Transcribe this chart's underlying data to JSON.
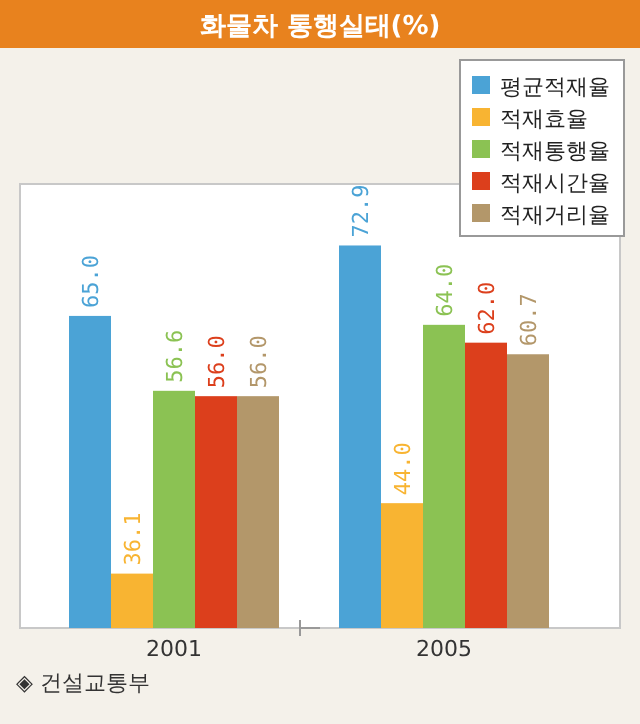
{
  "chart_data": {
    "type": "bar",
    "title": "화물차 통행실태(%)",
    "categories": [
      "2001",
      "2005"
    ],
    "series": [
      {
        "name": "평균적재율",
        "color": "#4ba3d6",
        "values": [
          65.0,
          72.9
        ],
        "value_labels": [
          "65.0",
          "72.9"
        ]
      },
      {
        "name": "적재효율",
        "color": "#f8b432",
        "values": [
          36.1,
          44.0
        ],
        "value_labels": [
          "36.1",
          "44.0"
        ]
      },
      {
        "name": "적재통행율",
        "color": "#8bc253",
        "values": [
          56.6,
          64.0
        ],
        "value_labels": [
          "56.6",
          "64.0"
        ]
      },
      {
        "name": "적재시간율",
        "color": "#dc3f1c",
        "values": [
          56.0,
          62.0
        ],
        "value_labels": [
          "56.0",
          "62.0"
        ]
      },
      {
        "name": "적재거리율",
        "color": "#b3976a",
        "values": [
          56.0,
          60.7
        ],
        "value_labels": [
          "56.0",
          "60.7"
        ]
      }
    ],
    "ylim": [
      30,
      78
    ],
    "legend": "top right",
    "annotations": [
      "◈ 건설교통부"
    ]
  }
}
